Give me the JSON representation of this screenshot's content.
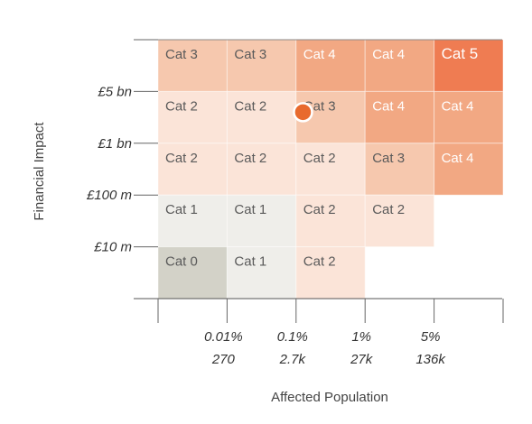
{
  "chart_data": {
    "type": "heatmap",
    "xlabel": "Affected Population",
    "ylabel": "Financial Impact",
    "x_ticks": [
      {
        "line1": "0.01%",
        "line2": "270"
      },
      {
        "line1": "0.1%",
        "line2": "2.7k"
      },
      {
        "line1": "1%",
        "line2": "27k"
      },
      {
        "line1": "5%",
        "line2": "136k"
      }
    ],
    "y_ticks": [
      "£5 bn",
      "£1 bn",
      "£100 m",
      "£10 m"
    ],
    "grid": [
      [
        "Cat 3",
        "Cat 3",
        "Cat 4",
        "Cat 4",
        "Cat 5"
      ],
      [
        "Cat 2",
        "Cat 2",
        "Cat 3",
        "Cat 4",
        "Cat 4"
      ],
      [
        "Cat 2",
        "Cat 2",
        "Cat 2",
        "Cat 3",
        "Cat 4"
      ],
      [
        "Cat 1",
        "Cat 1",
        "Cat 2",
        "Cat 2",
        ""
      ],
      [
        "Cat 0",
        "Cat 1",
        "Cat 2",
        "",
        ""
      ]
    ],
    "category_colors": {
      "Cat 0": "#d3d2c8",
      "Cat 1": "#efeeea",
      "Cat 2": "#fbe4d8",
      "Cat 3": "#f6c8ae",
      "Cat 4": "#f2a883",
      "Cat 5": "#ef7c52"
    },
    "marker": {
      "column": 2.1,
      "row": 1.4,
      "color": "#e86a2e"
    }
  }
}
